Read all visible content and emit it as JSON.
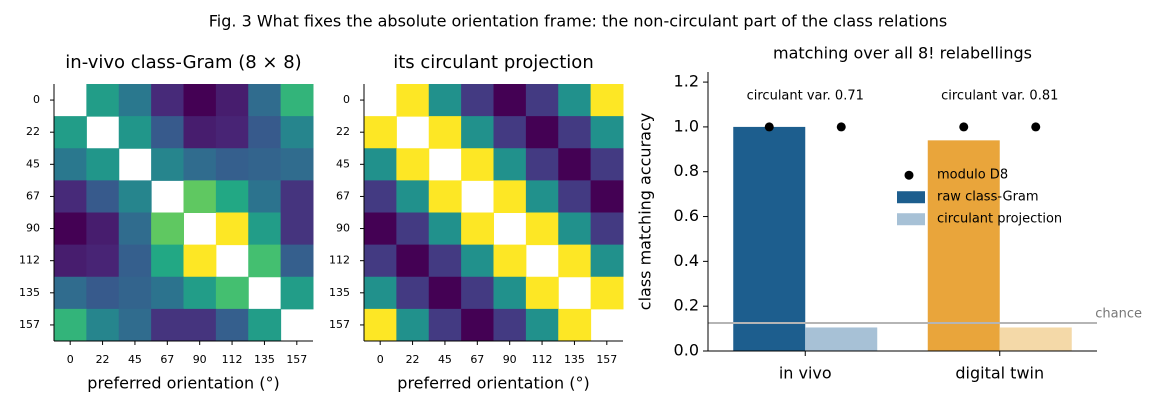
{
  "title": "Fig. 3  What fixes the absolute orientation frame: the non-circulant part of the class relations",
  "chart_data": [
    {
      "type": "heatmap",
      "title": "in-vivo class-Gram (8 × 8)",
      "xlabel": "preferred orientation (°)",
      "categories": [
        "0",
        "22",
        "45",
        "67",
        "90",
        "112",
        "135",
        "157"
      ],
      "y_categories": [
        "0",
        "22",
        "45",
        "67",
        "90",
        "112",
        "135",
        "157"
      ],
      "colormap": "viridis",
      "zlim": [
        0,
        1
      ],
      "values": [
        [
          null,
          0.55,
          0.4,
          0.12,
          0.0,
          0.08,
          0.35,
          0.65
        ],
        [
          0.55,
          null,
          0.52,
          0.28,
          0.08,
          0.1,
          0.28,
          0.45
        ],
        [
          0.4,
          0.52,
          null,
          0.45,
          0.35,
          0.3,
          0.32,
          0.35
        ],
        [
          0.12,
          0.28,
          0.45,
          null,
          0.75,
          0.6,
          0.38,
          0.15
        ],
        [
          0.0,
          0.08,
          0.35,
          0.75,
          null,
          1.0,
          0.55,
          0.15
        ],
        [
          0.08,
          0.1,
          0.3,
          0.6,
          1.0,
          null,
          0.7,
          0.3
        ],
        [
          0.35,
          0.28,
          0.32,
          0.38,
          0.55,
          0.7,
          null,
          0.55
        ],
        [
          0.65,
          0.45,
          0.35,
          0.15,
          0.15,
          0.3,
          0.55,
          null
        ]
      ]
    },
    {
      "type": "heatmap",
      "title": "its circulant projection",
      "xlabel": "preferred orientation (°)",
      "categories": [
        "0",
        "22",
        "45",
        "67",
        "90",
        "112",
        "135",
        "157"
      ],
      "y_categories": [
        "0",
        "22",
        "45",
        "67",
        "90",
        "112",
        "135",
        "157"
      ],
      "colormap": "viridis",
      "zlim": [
        0,
        1
      ],
      "values": [
        [
          null,
          1.0,
          0.5,
          0.17,
          0.0,
          0.17,
          0.5,
          1.0
        ],
        [
          1.0,
          null,
          1.0,
          0.5,
          0.17,
          0.0,
          0.17,
          0.5
        ],
        [
          0.5,
          1.0,
          null,
          1.0,
          0.5,
          0.17,
          0.0,
          0.17
        ],
        [
          0.17,
          0.5,
          1.0,
          null,
          1.0,
          0.5,
          0.17,
          0.0
        ],
        [
          0.0,
          0.17,
          0.5,
          1.0,
          null,
          1.0,
          0.5,
          0.17
        ],
        [
          0.17,
          0.0,
          0.17,
          0.5,
          1.0,
          null,
          1.0,
          0.5
        ],
        [
          0.5,
          0.17,
          0.0,
          0.17,
          0.5,
          1.0,
          null,
          1.0
        ],
        [
          1.0,
          0.5,
          0.17,
          0.0,
          0.17,
          0.5,
          1.0,
          null
        ]
      ]
    },
    {
      "type": "bar",
      "title": "matching over all 8! relabellings",
      "ylabel": "class matching accuracy",
      "categories": [
        "in vivo",
        "digital twin"
      ],
      "annotations": [
        "circulant var. 0.71",
        "circulant var. 0.81"
      ],
      "series": [
        {
          "name": "raw class-Gram",
          "colors": [
            "#1d5e8e",
            "#e9a53b"
          ],
          "values": [
            1.0,
            0.94
          ]
        },
        {
          "name": "circulant projection",
          "colors": [
            "#a7c1d6",
            "#f4d9a8"
          ],
          "values": [
            0.105,
            0.105
          ]
        }
      ],
      "markers": {
        "name": "modulo D8",
        "color": "#000000",
        "values": [
          [
            1.0,
            1.0
          ],
          [
            1.0,
            1.0
          ]
        ]
      },
      "hline": {
        "value": 0.125,
        "label": "chance",
        "color": "#b5b5b5"
      },
      "ylim": [
        0,
        1.245
      ],
      "yticks": [
        {
          "value": 0,
          "label": "0.0"
        },
        0.2,
        0.4,
        0.6,
        0.8,
        {
          "value": 1,
          "label": "1.0"
        },
        1.2
      ],
      "legend": "center right"
    }
  ]
}
